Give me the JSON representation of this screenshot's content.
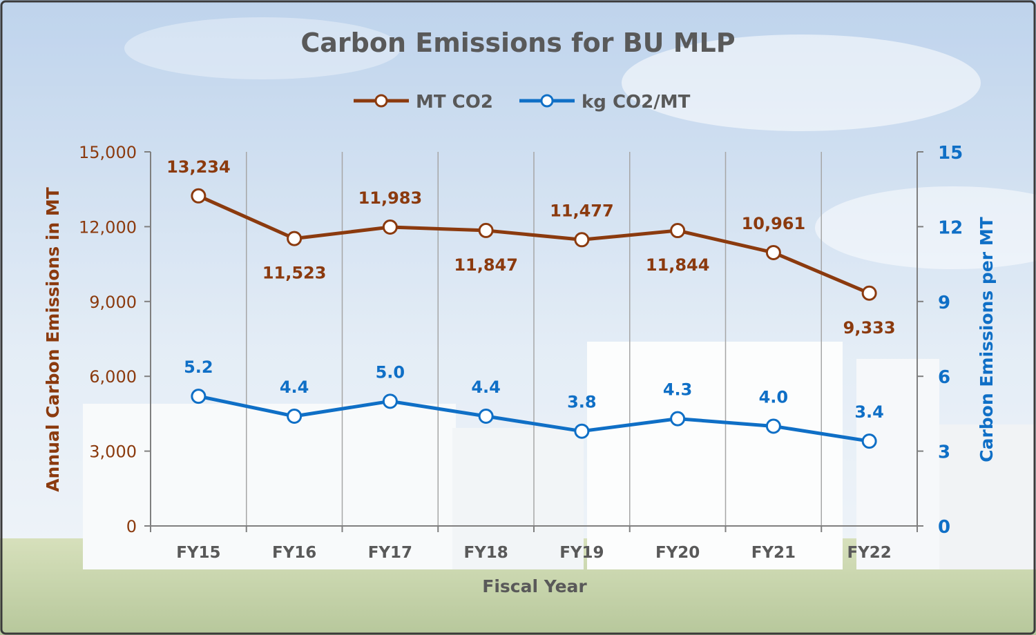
{
  "chart_data": {
    "type": "line",
    "title": "Carbon Emissions for BU MLP",
    "xlabel": "Fiscal Year",
    "ylabel_left": "Annual Carbon Emissions in MT",
    "ylabel_right": "Carbon Emissions per MT",
    "categories": [
      "FY15",
      "FY16",
      "FY17",
      "FY18",
      "FY19",
      "FY20",
      "FY21",
      "FY22"
    ],
    "y_left": {
      "min": 0,
      "max": 15000,
      "ticks": [
        0,
        3000,
        6000,
        9000,
        12000,
        15000
      ],
      "tick_labels": [
        "0",
        "3,000",
        "6,000",
        "9,000",
        "12,000",
        "15,000"
      ]
    },
    "y_right": {
      "min": 0,
      "max": 15,
      "ticks": [
        0,
        3,
        6,
        9,
        12,
        15
      ],
      "tick_labels": [
        "0",
        "3",
        "6",
        "9",
        "12",
        "15"
      ]
    },
    "series": [
      {
        "name": "MT CO2",
        "axis": "left",
        "color": "#8B3A0E",
        "values": [
          13234,
          11523,
          11983,
          11847,
          11477,
          11844,
          10961,
          9333
        ],
        "labels": [
          "13,234",
          "11,523",
          "11,983",
          "11,847",
          "11,477",
          "11,844",
          "10,961",
          "9,333"
        ],
        "label_side": [
          "above",
          "below",
          "above",
          "below",
          "above",
          "below",
          "above",
          "below"
        ]
      },
      {
        "name": "kg CO2/MT",
        "axis": "right",
        "color": "#0F6FC6",
        "values": [
          5.2,
          4.4,
          5.0,
          4.4,
          3.8,
          4.3,
          4.0,
          3.4
        ],
        "labels": [
          "5.2",
          "4.4",
          "5.0",
          "4.4",
          "3.8",
          "4.3",
          "4.0",
          "3.4"
        ],
        "label_side": [
          "above",
          "above",
          "above",
          "above",
          "above",
          "above",
          "above",
          "above"
        ]
      }
    ],
    "grid": "vertical",
    "legend": "top-center"
  }
}
